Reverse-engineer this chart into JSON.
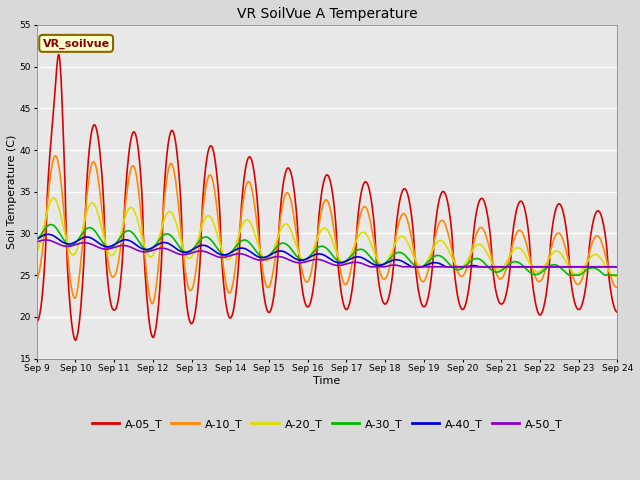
{
  "title": "VR SoilVue A Temperature",
  "xlabel": "Time",
  "ylabel": "Soil Temperature (C)",
  "ylim": [
    15,
    55
  ],
  "yticks": [
    15,
    20,
    25,
    30,
    35,
    40,
    45,
    50,
    55
  ],
  "bg_color": "#d9d9d9",
  "plot_bg_color": "#e8e8e8",
  "series": [
    {
      "label": "A-05_T",
      "color": "#dd0000",
      "lw": 1.2
    },
    {
      "label": "A-10_T",
      "color": "#ff8800",
      "lw": 1.2
    },
    {
      "label": "A-20_T",
      "color": "#dddd00",
      "lw": 1.2
    },
    {
      "label": "A-30_T",
      "color": "#00bb00",
      "lw": 1.2
    },
    {
      "label": "A-40_T",
      "color": "#0000dd",
      "lw": 1.2
    },
    {
      "label": "A-50_T",
      "color": "#8800cc",
      "lw": 1.2
    }
  ],
  "legend_label": "VR_soilvue",
  "legend_box_color": "#ffffcc",
  "legend_box_edge": "#886600",
  "xtick_labels": [
    "Sep 9",
    "Sep 10",
    "Sep 11",
    "Sep 12",
    "Sep 13",
    "Sep 14",
    "Sep 15",
    "Sep 16",
    "Sep 17",
    "Sep 18",
    "Sep 19",
    "Sep 20",
    "Sep 21",
    "Sep 22",
    "Sep 23",
    "Sep 24"
  ],
  "n_days": 15,
  "points_per_day": 48
}
